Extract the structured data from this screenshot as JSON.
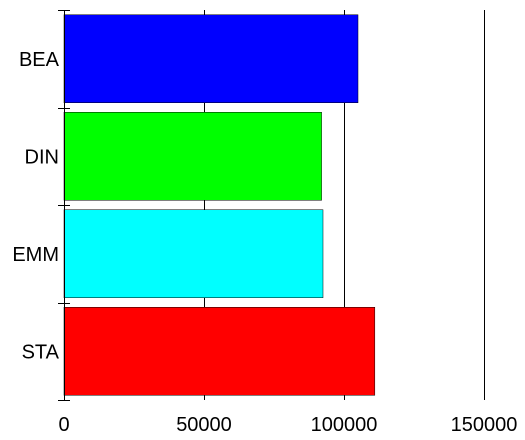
{
  "chart_data": {
    "type": "bar",
    "orientation": "horizontal",
    "categories": [
      "BEA",
      "DIN",
      "EMM",
      "STA"
    ],
    "values": [
      105000,
      92000,
      92500,
      111000
    ],
    "colors": [
      "#0000ff",
      "#00ff00",
      "#00ffff",
      "#ff0000"
    ],
    "xlim": [
      0,
      150000
    ],
    "xticks": [
      0,
      50000,
      100000,
      150000
    ],
    "tick_labels": [
      "0",
      "50000",
      "100000",
      "150000"
    ],
    "grid": "vertical",
    "title": "",
    "xlabel": "",
    "ylabel": ""
  }
}
